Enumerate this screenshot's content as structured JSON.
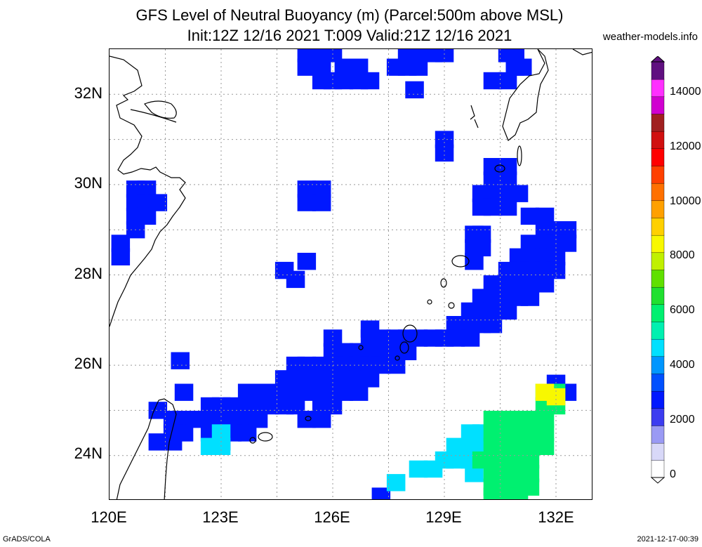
{
  "title": {
    "line1": "GFS Level of Neutral Buoyancy (m) (Parcel:500m above MSL)",
    "line2": "Init:12Z 12/16 2021 T:009 Valid:21Z 12/16 2021"
  },
  "credit": "weather-models.info",
  "footer": {
    "left": "GrADS/COLA",
    "right": "2021-12-17-00:39"
  },
  "map": {
    "lon_range": [
      120,
      133
    ],
    "lat_range": [
      23,
      33
    ],
    "lat_labels": [
      "32N",
      "30N",
      "28N",
      "26N",
      "24N"
    ],
    "lon_labels": [
      "120E",
      "123E",
      "126E",
      "129E",
      "132E"
    ],
    "grid": "dotted"
  },
  "colorbar": {
    "labels": [
      "14000",
      "12000",
      "10000",
      "8000",
      "6000",
      "4000",
      "2000",
      "0"
    ],
    "colors": {
      "0": "#ffffff",
      "500": "#d8d8f8",
      "1000": "#9a9af4",
      "1500": "#3c3cf0",
      "2000": "#0018ff",
      "2500": "#0050ff",
      "3000": "#0096ff",
      "3500": "#00e0ff",
      "4000": "#00f0b0",
      "4500": "#00f070",
      "5000": "#20e030",
      "5500": "#60e000",
      "6000": "#c0f000",
      "6500": "#f8f800",
      "7000": "#ffd000",
      "7500": "#ffa000",
      "8000": "#ff7000",
      "9000": "#ff4000",
      "10000": "#ff0000",
      "11000": "#d01010",
      "12000": "#a02020",
      "13000": "#d000d0",
      "14000": "#ff30ff",
      "15000": "#601080"
    }
  },
  "blue_cells": [
    [
      125.3,
      32.9
    ],
    [
      125.7,
      32.9
    ],
    [
      126.0,
      32.9
    ],
    [
      128.0,
      32.9
    ],
    [
      128.3,
      32.9
    ],
    [
      128.7,
      32.9
    ],
    [
      129.0,
      32.9
    ],
    [
      130.7,
      32.9
    ],
    [
      130.9,
      32.9
    ],
    [
      125.3,
      32.6
    ],
    [
      125.7,
      32.6
    ],
    [
      126.3,
      32.6
    ],
    [
      126.7,
      32.6
    ],
    [
      127.7,
      32.6
    ],
    [
      128.0,
      32.6
    ],
    [
      128.3,
      32.6
    ],
    [
      130.9,
      32.6
    ],
    [
      131.1,
      32.6
    ],
    [
      125.7,
      32.3
    ],
    [
      126.0,
      32.3
    ],
    [
      126.3,
      32.3
    ],
    [
      126.7,
      32.3
    ],
    [
      127.0,
      32.3
    ],
    [
      130.3,
      32.3
    ],
    [
      130.7,
      32.3
    ],
    [
      128.2,
      32.1
    ],
    [
      129.0,
      31.0
    ],
    [
      129.0,
      30.7
    ],
    [
      130.3,
      30.4
    ],
    [
      130.7,
      30.4
    ],
    [
      130.3,
      30.1
    ],
    [
      130.7,
      30.1
    ],
    [
      130.0,
      29.8
    ],
    [
      130.3,
      29.8
    ],
    [
      130.7,
      29.8
    ],
    [
      131.0,
      29.8
    ],
    [
      130.0,
      29.5
    ],
    [
      130.3,
      29.5
    ],
    [
      130.7,
      29.5
    ],
    [
      131.3,
      29.3
    ],
    [
      131.7,
      29.3
    ],
    [
      125.3,
      29.9
    ],
    [
      125.7,
      29.9
    ],
    [
      125.3,
      29.6
    ],
    [
      125.7,
      29.6
    ],
    [
      120.7,
      29.9
    ],
    [
      121.0,
      29.9
    ],
    [
      120.7,
      29.6
    ],
    [
      121.0,
      29.6
    ],
    [
      121.3,
      29.6
    ],
    [
      120.7,
      29.3
    ],
    [
      121.0,
      29.3
    ],
    [
      120.7,
      29.0
    ],
    [
      120.3,
      28.7
    ],
    [
      120.3,
      28.4
    ],
    [
      129.8,
      28.9
    ],
    [
      130.0,
      28.9
    ],
    [
      130.0,
      28.6
    ],
    [
      129.8,
      28.6
    ],
    [
      129.8,
      28.3
    ],
    [
      131.7,
      29.0
    ],
    [
      132.0,
      29.0
    ],
    [
      132.3,
      29.0
    ],
    [
      131.7,
      28.7
    ],
    [
      132.0,
      28.7
    ],
    [
      132.3,
      28.7
    ],
    [
      131.3,
      28.7
    ],
    [
      131.0,
      28.4
    ],
    [
      131.3,
      28.4
    ],
    [
      131.7,
      28.4
    ],
    [
      132.0,
      28.4
    ],
    [
      130.7,
      28.1
    ],
    [
      131.0,
      28.1
    ],
    [
      131.3,
      28.1
    ],
    [
      131.7,
      28.1
    ],
    [
      132.0,
      28.1
    ],
    [
      130.3,
      27.8
    ],
    [
      130.7,
      27.8
    ],
    [
      131.0,
      27.8
    ],
    [
      131.3,
      27.8
    ],
    [
      131.7,
      27.8
    ],
    [
      130.0,
      27.5
    ],
    [
      130.3,
      27.5
    ],
    [
      130.7,
      27.5
    ],
    [
      131.0,
      27.5
    ],
    [
      131.3,
      27.5
    ],
    [
      129.7,
      27.2
    ],
    [
      130.0,
      27.2
    ],
    [
      130.3,
      27.2
    ],
    [
      130.7,
      27.2
    ],
    [
      129.3,
      26.9
    ],
    [
      129.7,
      26.9
    ],
    [
      130.0,
      26.9
    ],
    [
      130.3,
      26.9
    ],
    [
      129.0,
      26.6
    ],
    [
      129.3,
      26.6
    ],
    [
      129.7,
      26.6
    ],
    [
      128.0,
      26.6
    ],
    [
      128.3,
      26.6
    ],
    [
      128.7,
      26.6
    ],
    [
      126.0,
      26.6
    ],
    [
      127.0,
      26.6
    ],
    [
      127.3,
      26.6
    ],
    [
      127.7,
      26.6
    ],
    [
      126.0,
      26.3
    ],
    [
      126.3,
      26.3
    ],
    [
      126.7,
      26.3
    ],
    [
      127.0,
      26.3
    ],
    [
      127.3,
      26.3
    ],
    [
      127.7,
      26.3
    ],
    [
      128.0,
      26.3
    ],
    [
      125.0,
      26.0
    ],
    [
      125.3,
      26.0
    ],
    [
      125.7,
      26.0
    ],
    [
      126.0,
      26.0
    ],
    [
      126.3,
      26.0
    ],
    [
      126.7,
      26.0
    ],
    [
      127.0,
      26.0
    ],
    [
      127.3,
      26.0
    ],
    [
      127.7,
      26.0
    ],
    [
      124.7,
      25.7
    ],
    [
      125.0,
      25.7
    ],
    [
      125.3,
      25.7
    ],
    [
      125.7,
      25.7
    ],
    [
      126.0,
      25.7
    ],
    [
      126.3,
      25.7
    ],
    [
      126.7,
      25.7
    ],
    [
      127.0,
      25.7
    ],
    [
      123.7,
      25.4
    ],
    [
      124.0,
      25.4
    ],
    [
      124.3,
      25.4
    ],
    [
      124.7,
      25.4
    ],
    [
      125.0,
      25.4
    ],
    [
      125.3,
      25.4
    ],
    [
      125.7,
      25.4
    ],
    [
      126.0,
      25.4
    ],
    [
      126.3,
      25.4
    ],
    [
      126.7,
      25.4
    ],
    [
      122.7,
      25.1
    ],
    [
      123.0,
      25.1
    ],
    [
      123.3,
      25.1
    ],
    [
      123.7,
      25.1
    ],
    [
      124.0,
      25.1
    ],
    [
      124.3,
      25.1
    ],
    [
      124.7,
      25.1
    ],
    [
      125.0,
      25.1
    ],
    [
      125.7,
      25.1
    ],
    [
      126.0,
      25.1
    ],
    [
      121.7,
      24.8
    ],
    [
      122.0,
      24.8
    ],
    [
      122.3,
      24.8
    ],
    [
      122.7,
      24.8
    ],
    [
      123.0,
      24.8
    ],
    [
      123.3,
      24.8
    ],
    [
      123.7,
      24.8
    ],
    [
      124.0,
      24.8
    ],
    [
      125.3,
      24.8
    ],
    [
      125.7,
      24.8
    ],
    [
      121.7,
      24.5
    ],
    [
      122.0,
      24.5
    ],
    [
      122.7,
      24.5
    ],
    [
      123.0,
      24.5
    ],
    [
      123.3,
      24.5
    ],
    [
      123.7,
      24.5
    ],
    [
      121.3,
      24.3
    ],
    [
      121.7,
      24.3
    ],
    [
      123.0,
      24.3
    ],
    [
      121.3,
      25.0
    ],
    [
      122.0,
      25.4
    ],
    [
      121.9,
      26.1
    ],
    [
      124.7,
      28.1
    ],
    [
      125.0,
      27.9
    ],
    [
      125.3,
      28.3
    ],
    [
      127.0,
      26.8
    ],
    [
      132.3,
      25.4
    ],
    [
      132.0,
      25.6
    ],
    [
      127.3,
      23.1
    ]
  ],
  "cyan_cells": [
    [
      122.7,
      24.2
    ],
    [
      123.0,
      24.2
    ],
    [
      123.0,
      24.5
    ],
    [
      128.3,
      23.7
    ],
    [
      128.7,
      23.7
    ],
    [
      127.7,
      23.4
    ],
    [
      129.0,
      23.9
    ],
    [
      129.3,
      23.9
    ],
    [
      129.7,
      23.9
    ],
    [
      129.3,
      24.2
    ],
    [
      129.7,
      24.2
    ],
    [
      130.0,
      24.2
    ],
    [
      129.7,
      24.5
    ],
    [
      130.0,
      24.5
    ],
    [
      129.8,
      23.6
    ]
  ],
  "green_cells": [
    [
      130.3,
      24.8
    ],
    [
      130.7,
      24.8
    ],
    [
      131.0,
      24.8
    ],
    [
      131.3,
      24.8
    ],
    [
      131.7,
      24.8
    ],
    [
      130.3,
      24.5
    ],
    [
      130.7,
      24.5
    ],
    [
      131.0,
      24.5
    ],
    [
      131.3,
      24.5
    ],
    [
      131.7,
      24.5
    ],
    [
      130.0,
      23.9
    ],
    [
      130.3,
      23.9
    ],
    [
      130.7,
      23.9
    ],
    [
      131.0,
      23.9
    ],
    [
      131.3,
      23.9
    ],
    [
      130.3,
      24.2
    ],
    [
      130.7,
      24.2
    ],
    [
      131.0,
      24.2
    ],
    [
      131.3,
      24.2
    ],
    [
      131.7,
      24.2
    ],
    [
      130.3,
      23.6
    ],
    [
      130.7,
      23.6
    ],
    [
      131.0,
      23.6
    ],
    [
      131.3,
      23.6
    ],
    [
      130.3,
      23.3
    ],
    [
      130.7,
      23.3
    ],
    [
      131.0,
      23.3
    ],
    [
      131.3,
      23.3
    ],
    [
      130.3,
      23.1
    ],
    [
      130.7,
      23.1
    ],
    [
      131.0,
      23.1
    ],
    [
      131.7,
      25.1
    ],
    [
      132.0,
      25.1
    ],
    [
      131.7,
      25.4
    ],
    [
      132.0,
      25.4
    ]
  ],
  "yellow_cells": [
    [
      131.7,
      25.4
    ],
    [
      132.0,
      25.3
    ]
  ]
}
